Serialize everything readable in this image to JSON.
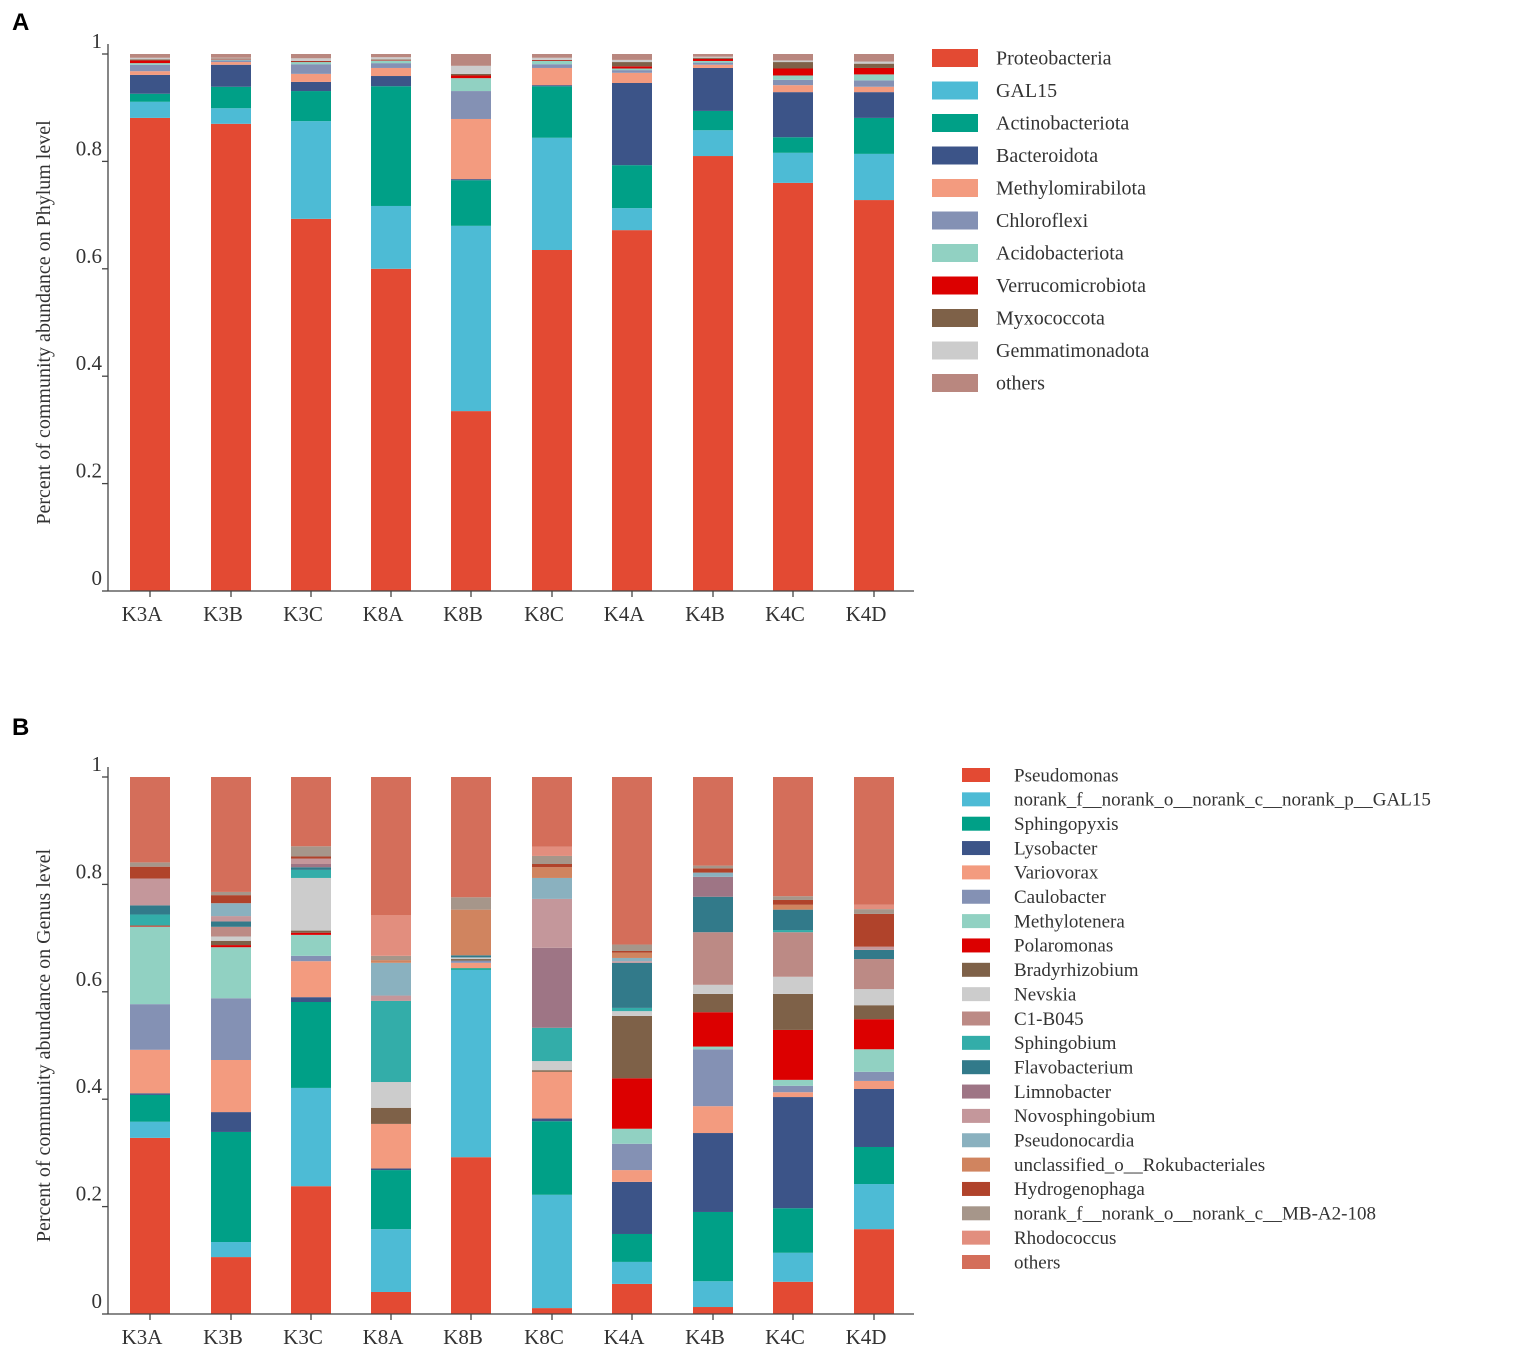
{
  "chart_data": [
    {
      "type": "bar",
      "stacked": true,
      "panel_label": "A",
      "title": "",
      "xlabel": "",
      "ylabel": "Percent of community abundance on Phylum level",
      "ylim": [
        0,
        1
      ],
      "yticks": [
        "0",
        "0.2",
        "0.4",
        "0.6",
        "0.8",
        "1"
      ],
      "ytick_values": [
        0,
        0.2,
        0.4,
        0.6,
        0.8,
        1
      ],
      "legend_position": "right",
      "categories": [
        "K3A",
        "K3B",
        "K3C",
        "K8A",
        "K8B",
        "K8C",
        "K4A",
        "K4B",
        "K4C",
        "K4D"
      ],
      "series": [
        {
          "name": "Proteobacteria",
          "color": "#E34A33",
          "values": [
            0.881,
            0.87,
            0.693,
            0.6,
            0.335,
            0.635,
            0.672,
            0.81,
            0.76,
            0.728
          ]
        },
        {
          "name": "GAL15",
          "color": "#4DBBD5",
          "values": [
            0.03,
            0.029,
            0.182,
            0.117,
            0.345,
            0.209,
            0.041,
            0.048,
            0.056,
            0.086
          ]
        },
        {
          "name": "Actinobacteriota",
          "color": "#00A087",
          "values": [
            0.015,
            0.04,
            0.056,
            0.223,
            0.085,
            0.096,
            0.08,
            0.036,
            0.029,
            0.067
          ]
        },
        {
          "name": "Bacteroidota",
          "color": "#3C5488",
          "values": [
            0.035,
            0.041,
            0.017,
            0.019,
            0.002,
            0.002,
            0.153,
            0.08,
            0.084,
            0.048
          ]
        },
        {
          "name": "Methylomirabilota",
          "color": "#F39B7F",
          "values": [
            0.007,
            0.005,
            0.015,
            0.015,
            0.112,
            0.032,
            0.019,
            0.006,
            0.013,
            0.01
          ]
        },
        {
          "name": "Chloroflexi",
          "color": "#8491B4",
          "values": [
            0.012,
            0.003,
            0.018,
            0.009,
            0.052,
            0.007,
            0.005,
            0.004,
            0.01,
            0.012
          ]
        },
        {
          "name": "Acidobacteriota",
          "color": "#91D1C2",
          "values": [
            0.003,
            0.002,
            0.004,
            0.005,
            0.024,
            0.006,
            0.003,
            0.003,
            0.008,
            0.011
          ]
        },
        {
          "name": "Verrucomicrobiota",
          "color": "#DC0000",
          "values": [
            0.005,
            0.001,
            0.001,
            0.001,
            0.005,
            0.001,
            0.004,
            0.004,
            0.013,
            0.012
          ]
        },
        {
          "name": "Myxococcota",
          "color": "#7E6148",
          "values": [
            0.002,
            0.001,
            0.001,
            0.001,
            0.003,
            0.001,
            0.008,
            0.002,
            0.012,
            0.008
          ]
        },
        {
          "name": "Gemmatimonadota",
          "color": "#CCCCCC",
          "values": [
            0.003,
            0.001,
            0.005,
            0.004,
            0.015,
            0.004,
            0.004,
            0.002,
            0.003,
            0.004
          ]
        },
        {
          "name": "others",
          "color": "#B9877F",
          "values": [
            0.007,
            0.007,
            0.008,
            0.006,
            0.022,
            0.007,
            0.011,
            0.005,
            0.012,
            0.014
          ]
        }
      ]
    },
    {
      "type": "bar",
      "stacked": true,
      "panel_label": "B",
      "title": "",
      "xlabel": "",
      "ylabel": "Percent of community abundance on Genus level",
      "ylim": [
        0,
        1
      ],
      "yticks": [
        "0",
        "0.2",
        "0.4",
        "0.6",
        "0.8",
        "1"
      ],
      "ytick_values": [
        0,
        0.2,
        0.4,
        0.6,
        0.8,
        1
      ],
      "legend_position": "right",
      "categories": [
        "K3A",
        "K3B",
        "K3C",
        "K8A",
        "K8B",
        "K8C",
        "K4A",
        "K4B",
        "K4C",
        "K4D"
      ],
      "series": [
        {
          "name": "Pseudomonas",
          "color": "#E34A33",
          "values": [
            0.328,
            0.106,
            0.238,
            0.041,
            0.292,
            0.011,
            0.056,
            0.013,
            0.06,
            0.158
          ]
        },
        {
          "name": "norank_f__norank_o__norank_c__norank_p__GAL15",
          "color": "#4DBBD5",
          "values": [
            0.03,
            0.028,
            0.183,
            0.117,
            0.349,
            0.211,
            0.041,
            0.048,
            0.054,
            0.084
          ]
        },
        {
          "name": "Sphingopyxis",
          "color": "#00A087",
          "values": [
            0.05,
            0.205,
            0.16,
            0.11,
            0.003,
            0.137,
            0.052,
            0.129,
            0.083,
            0.069
          ]
        },
        {
          "name": "Lysobacter",
          "color": "#3C5488",
          "values": [
            0.003,
            0.037,
            0.009,
            0.003,
            0,
            0.005,
            0.097,
            0.147,
            0.207,
            0.108
          ]
        },
        {
          "name": "Variovorax",
          "color": "#F39B7F",
          "values": [
            0.081,
            0.097,
            0.067,
            0.083,
            0.01,
            0.087,
            0.022,
            0.05,
            0.009,
            0.015
          ]
        },
        {
          "name": "Caulobacter",
          "color": "#8491B4",
          "values": [
            0.085,
            0.115,
            0.01,
            0,
            0.004,
            0,
            0.049,
            0.106,
            0.012,
            0.017
          ]
        },
        {
          "name": "Methylotenera",
          "color": "#91D1C2",
          "values": [
            0.144,
            0.095,
            0.039,
            0,
            0,
            0,
            0.028,
            0.005,
            0.011,
            0.042
          ]
        },
        {
          "name": "Polaromonas",
          "color": "#DC0000",
          "values": [
            0.001,
            0.004,
            0.004,
            0,
            0,
            0,
            0.094,
            0.064,
            0.093,
            0.056
          ]
        },
        {
          "name": "Bradyrhizobium",
          "color": "#7E6148",
          "values": [
            0.002,
            0.008,
            0.004,
            0.03,
            0.003,
            0.003,
            0.116,
            0.034,
            0.067,
            0.026
          ]
        },
        {
          "name": "Nevskia",
          "color": "#CCCCCC",
          "values": [
            0,
            0.008,
            0.098,
            0.048,
            0.003,
            0.017,
            0.009,
            0.017,
            0.032,
            0.03
          ]
        },
        {
          "name": "C1-B045",
          "color": "#BC8A85",
          "values": [
            0,
            0.018,
            0,
            0,
            0,
            0,
            0,
            0.098,
            0.083,
            0.056
          ]
        },
        {
          "name": "Sphingobium",
          "color": "#33ADA9",
          "values": [
            0.02,
            0,
            0.015,
            0.151,
            0,
            0.062,
            0.006,
            0,
            0.004,
            0
          ]
        },
        {
          "name": "Flavobacterium",
          "color": "#327A8A",
          "values": [
            0.017,
            0.01,
            0.005,
            0,
            0.004,
            0,
            0.084,
            0.066,
            0.038,
            0.017
          ]
        },
        {
          "name": "Limnobacter",
          "color": "#9E7585",
          "values": [
            0,
            0,
            0.006,
            0,
            0,
            0.149,
            0,
            0.037,
            0,
            0
          ]
        },
        {
          "name": "Novosphingobium",
          "color": "#C4979B",
          "values": [
            0.05,
            0.01,
            0.01,
            0.01,
            0,
            0.091,
            0.003,
            0,
            0,
            0.006
          ]
        },
        {
          "name": "Pseudonocardia",
          "color": "#8AB1BF",
          "values": [
            0,
            0.024,
            0,
            0.061,
            0,
            0.039,
            0.006,
            0.008,
            0,
            0
          ]
        },
        {
          "name": "unclassified_o__Rokubacteriales",
          "color": "#D0845F",
          "values": [
            0,
            0,
            0,
            0.005,
            0.085,
            0.02,
            0.01,
            0,
            0.009,
            0
          ]
        },
        {
          "name": "Hydrogenophaga",
          "color": "#B0432B",
          "values": [
            0.022,
            0.015,
            0.004,
            0,
            0,
            0.006,
            0.003,
            0.008,
            0.009,
            0.061
          ]
        },
        {
          "name": "norank_f__norank_o__norank_c__MB-A2-108",
          "color": "#A6968A",
          "values": [
            0.008,
            0.006,
            0.019,
            0.008,
            0.023,
            0.015,
            0.012,
            0.005,
            0.007,
            0.009
          ]
        },
        {
          "name": "Rhodococcus",
          "color": "#E28E7E",
          "values": [
            0,
            0,
            0,
            0.076,
            0,
            0.017,
            0,
            0,
            0,
            0.008
          ]
        },
        {
          "name": "others",
          "color": "#D46E5A",
          "values": [
            0.159,
            0.214,
            0.129,
            0.257,
            0.224,
            0.13,
            0.312,
            0.165,
            0.222,
            0.238
          ]
        }
      ]
    }
  ]
}
